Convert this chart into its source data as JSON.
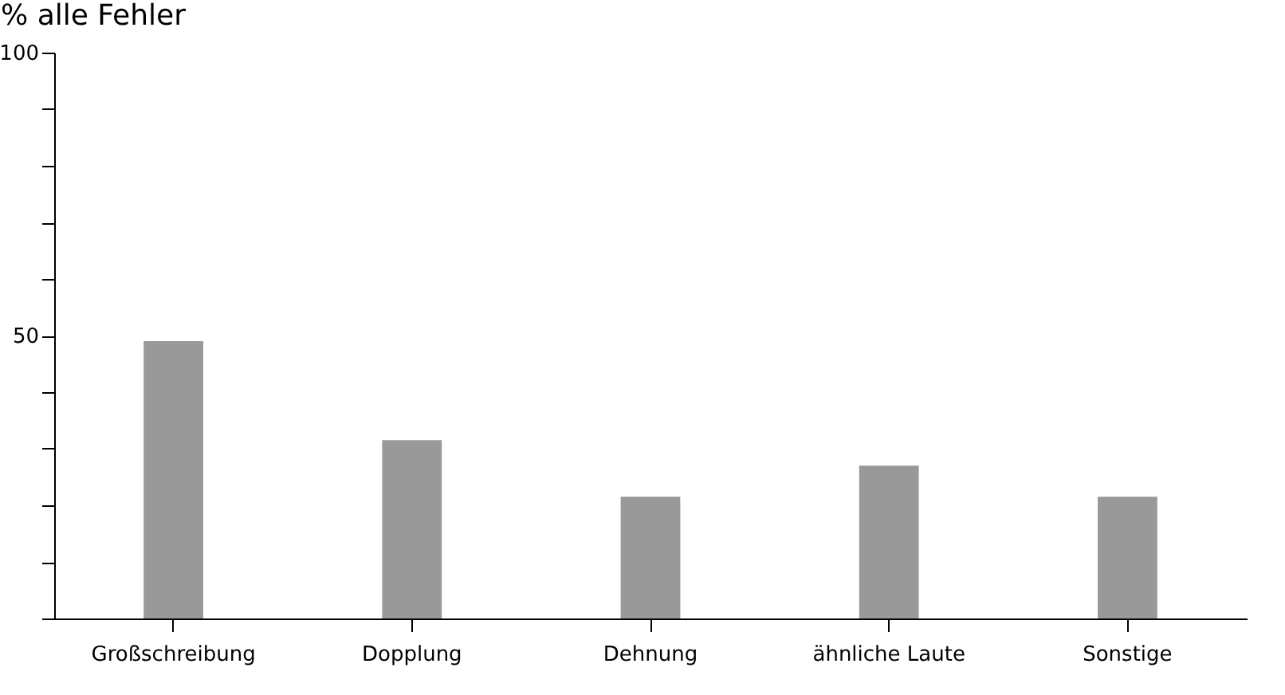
{
  "chart_data": {
    "type": "bar",
    "ylabel": "% alle Fehler",
    "categories": [
      "Großschreibung",
      "Dopplung",
      "Dehnung",
      "ähnliche Laute",
      "Sonstige"
    ],
    "values": [
      49,
      31.5,
      21.5,
      27,
      21.5
    ],
    "color": "#999999",
    "ylim": [
      0,
      100
    ],
    "yticks": [
      {
        "value": 0,
        "label": null
      },
      {
        "value": 10,
        "label": null
      },
      {
        "value": 20,
        "label": null
      },
      {
        "value": 30,
        "label": null
      },
      {
        "value": 40,
        "label": null
      },
      50,
      {
        "value": 60,
        "label": null
      },
      {
        "value": 70,
        "label": null
      },
      {
        "value": 80,
        "label": null
      },
      {
        "value": 90,
        "label": null
      },
      100
    ],
    "grid": false
  }
}
